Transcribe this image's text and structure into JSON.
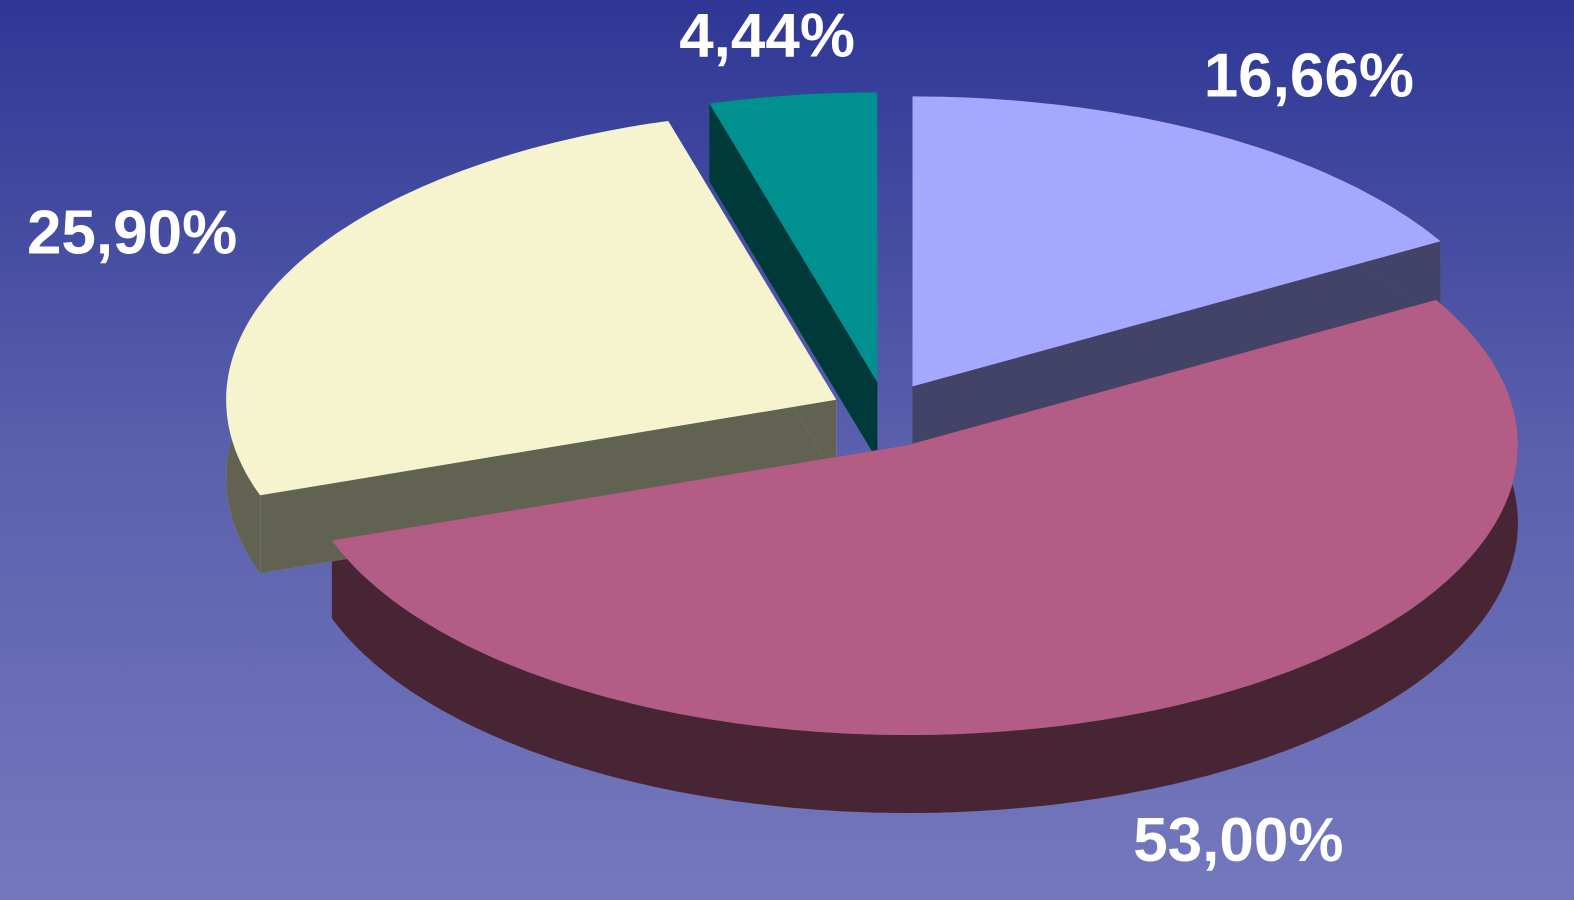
{
  "chart_data": {
    "type": "pie",
    "values": [
      16.66,
      53.0,
      25.9,
      4.44
    ],
    "value_labels": [
      "16,66%",
      "53,00%",
      "25,90%",
      "4,44%"
    ],
    "colors": [
      "#a5a8ff",
      "#b35c85",
      "#f6f4cf",
      "#009090"
    ],
    "three_d": true,
    "exploded": true
  }
}
